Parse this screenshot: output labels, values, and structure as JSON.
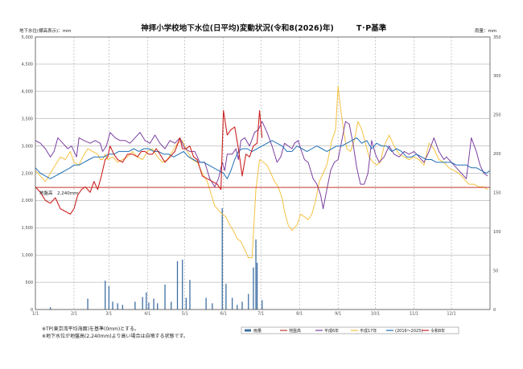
{
  "chart_data": {
    "type": "line",
    "title": "神拝小学校地下水位(日平均)変動状況(令和8(2026)年)",
    "title_suffix": "T･P基準",
    "ylabel": "地下水位(標高表示)：mm",
    "y2label": "雨量：mm",
    "ylim": [
      0,
      5000
    ],
    "y2lim": [
      0,
      350
    ],
    "yticks": [
      "0",
      "500",
      "1,000",
      "1,500",
      "2,000",
      "2,500",
      "3,000",
      "3,500",
      "4,000",
      "4,500",
      "5,000"
    ],
    "y2ticks": [
      "0",
      "50",
      "100",
      "150",
      "200",
      "250",
      "300",
      "350"
    ],
    "xlim": [
      0,
      365
    ],
    "xticks": [
      {
        "x": 0,
        "label": "1/1"
      },
      {
        "x": 31,
        "label": "2/1"
      },
      {
        "x": 59,
        "label": "3/1"
      },
      {
        "x": 90,
        "label": "4/1"
      },
      {
        "x": 120,
        "label": "5/1"
      },
      {
        "x": 151,
        "label": "6/1"
      },
      {
        "x": 181,
        "label": "7/1"
      },
      {
        "x": 212,
        "label": "8/1"
      },
      {
        "x": 243,
        "label": "9/1"
      },
      {
        "x": 273,
        "label": "10/1"
      },
      {
        "x": 304,
        "label": "11/1"
      },
      {
        "x": 334,
        "label": "12/1"
      }
    ],
    "ground_level": {
      "value": 2240,
      "label": "地盤高　2,240mm",
      "color": "#c0392b"
    },
    "notes": [
      "※TP(東京湾平均海面)を基準(0mm)とする。",
      "※地下水位が地盤高(2,240mm)より高い場合は自噴する状態です。"
    ],
    "legend": [
      {
        "key": "rain",
        "label": "雨量"
      },
      {
        "key": "ground",
        "label": "地盤高"
      },
      {
        "key": "h6",
        "label": "平成6年"
      },
      {
        "key": "h17",
        "label": "平成17年"
      },
      {
        "key": "avg",
        "label": "(2016～2025)"
      },
      {
        "key": "r8",
        "label": "令和8年"
      }
    ],
    "colors": {
      "rain": "#3f6fa3",
      "ground": "#c0392b",
      "h6": "#7b3fa0",
      "h17": "#f5c242",
      "avg": "#1f6fb5",
      "r8": "#cc2222"
    },
    "rain": [
      {
        "x": 12,
        "v": 3
      },
      {
        "x": 42,
        "v": 14
      },
      {
        "x": 56,
        "v": 37
      },
      {
        "x": 59,
        "v": 30
      },
      {
        "x": 62,
        "v": 10
      },
      {
        "x": 66,
        "v": 8
      },
      {
        "x": 70,
        "v": 6
      },
      {
        "x": 80,
        "v": 10
      },
      {
        "x": 86,
        "v": 16
      },
      {
        "x": 89,
        "v": 22
      },
      {
        "x": 91,
        "v": 9
      },
      {
        "x": 95,
        "v": 14
      },
      {
        "x": 98,
        "v": 8
      },
      {
        "x": 104,
        "v": 32
      },
      {
        "x": 109,
        "v": 10
      },
      {
        "x": 114,
        "v": 62
      },
      {
        "x": 118,
        "v": 64
      },
      {
        "x": 121,
        "v": 15
      },
      {
        "x": 124,
        "v": 38
      },
      {
        "x": 137,
        "v": 15
      },
      {
        "x": 142,
        "v": 8
      },
      {
        "x": 150,
        "v": 130
      },
      {
        "x": 153,
        "v": 33
      },
      {
        "x": 158,
        "v": 15
      },
      {
        "x": 162,
        "v": 6
      },
      {
        "x": 166,
        "v": 10
      },
      {
        "x": 171,
        "v": 20
      },
      {
        "x": 175,
        "v": 54
      },
      {
        "x": 177,
        "v": 90
      },
      {
        "x": 178,
        "v": 60
      },
      {
        "x": 182,
        "v": 12
      }
    ],
    "h6": [
      [
        0,
        3100
      ],
      [
        4,
        3050
      ],
      [
        8,
        2950
      ],
      [
        12,
        2800
      ],
      [
        15,
        2900
      ],
      [
        18,
        3150
      ],
      [
        22,
        3050
      ],
      [
        26,
        2950
      ],
      [
        29,
        3000
      ],
      [
        33,
        2800
      ],
      [
        35,
        3150
      ],
      [
        39,
        3100
      ],
      [
        44,
        3050
      ],
      [
        48,
        3100
      ],
      [
        52,
        3050
      ],
      [
        54,
        2900
      ],
      [
        57,
        3000
      ],
      [
        60,
        3250
      ],
      [
        64,
        3150
      ],
      [
        68,
        3100
      ],
      [
        72,
        3100
      ],
      [
        76,
        3050
      ],
      [
        80,
        3150
      ],
      [
        84,
        3250
      ],
      [
        88,
        3100
      ],
      [
        92,
        3050
      ],
      [
        96,
        3200
      ],
      [
        100,
        3050
      ],
      [
        104,
        2950
      ],
      [
        108,
        3100
      ],
      [
        112,
        3050
      ],
      [
        116,
        3150
      ],
      [
        120,
        2950
      ],
      [
        124,
        2900
      ],
      [
        128,
        2900
      ],
      [
        132,
        2700
      ],
      [
        136,
        2700
      ],
      [
        140,
        2400
      ],
      [
        144,
        2250
      ],
      [
        147,
        2400
      ],
      [
        150,
        2700
      ],
      [
        152,
        2550
      ],
      [
        154,
        2850
      ],
      [
        158,
        2850
      ],
      [
        161,
        2950
      ],
      [
        163,
        2750
      ],
      [
        165,
        3100
      ],
      [
        168,
        3150
      ],
      [
        172,
        3000
      ],
      [
        176,
        3250
      ],
      [
        179,
        3300
      ],
      [
        182,
        3450
      ],
      [
        186,
        3250
      ],
      [
        190,
        3000
      ],
      [
        194,
        2700
      ],
      [
        197,
        2800
      ],
      [
        200,
        3050
      ],
      [
        203,
        3000
      ],
      [
        206,
        2950
      ],
      [
        208,
        3050
      ],
      [
        211,
        3100
      ],
      [
        213,
        2950
      ],
      [
        216,
        2750
      ],
      [
        219,
        2700
      ],
      [
        223,
        2400
      ],
      [
        226,
        2300
      ],
      [
        229,
        2100
      ],
      [
        231,
        1850
      ],
      [
        234,
        2200
      ],
      [
        237,
        2550
      ],
      [
        240,
        2700
      ],
      [
        243,
        2750
      ],
      [
        246,
        3100
      ],
      [
        249,
        3450
      ],
      [
        252,
        3400
      ],
      [
        255,
        3050
      ],
      [
        258,
        2600
      ],
      [
        261,
        2300
      ],
      [
        264,
        2300
      ],
      [
        267,
        2500
      ],
      [
        270,
        3100
      ],
      [
        273,
        2850
      ],
      [
        276,
        2700
      ],
      [
        280,
        2800
      ],
      [
        284,
        3000
      ],
      [
        288,
        2850
      ],
      [
        292,
        2800
      ],
      [
        296,
        2900
      ],
      [
        300,
        2850
      ],
      [
        304,
        2900
      ],
      [
        308,
        2800
      ],
      [
        312,
        2700
      ],
      [
        316,
        2900
      ],
      [
        320,
        3150
      ],
      [
        324,
        2900
      ],
      [
        328,
        2750
      ],
      [
        330,
        2800
      ],
      [
        334,
        2700
      ],
      [
        338,
        2600
      ],
      [
        342,
        2500
      ],
      [
        346,
        2400
      ],
      [
        350,
        3150
      ],
      [
        354,
        2900
      ],
      [
        357,
        2650
      ],
      [
        360,
        2500
      ],
      [
        363,
        2450
      ]
    ],
    "h17": [
      [
        0,
        2550
      ],
      [
        4,
        2450
      ],
      [
        8,
        2350
      ],
      [
        12,
        2500
      ],
      [
        16,
        2650
      ],
      [
        20,
        2800
      ],
      [
        24,
        2750
      ],
      [
        28,
        2900
      ],
      [
        31,
        2700
      ],
      [
        35,
        2650
      ],
      [
        38,
        2800
      ],
      [
        42,
        2950
      ],
      [
        46,
        2900
      ],
      [
        50,
        2850
      ],
      [
        52,
        2750
      ],
      [
        54,
        2750
      ],
      [
        56,
        2850
      ],
      [
        58,
        2750
      ],
      [
        62,
        2800
      ],
      [
        66,
        2700
      ],
      [
        70,
        2750
      ],
      [
        74,
        2800
      ],
      [
        78,
        2900
      ],
      [
        82,
        2800
      ],
      [
        86,
        2750
      ],
      [
        90,
        2900
      ],
      [
        94,
        2950
      ],
      [
        98,
        2800
      ],
      [
        102,
        2700
      ],
      [
        106,
        2750
      ],
      [
        110,
        2900
      ],
      [
        114,
        3050
      ],
      [
        118,
        3100
      ],
      [
        122,
        2900
      ],
      [
        126,
        2750
      ],
      [
        130,
        2700
      ],
      [
        134,
        2500
      ],
      [
        138,
        2350
      ],
      [
        142,
        2050
      ],
      [
        144,
        1900
      ],
      [
        148,
        1800
      ],
      [
        150,
        1750
      ],
      [
        153,
        1700
      ],
      [
        156,
        1550
      ],
      [
        159,
        1450
      ],
      [
        162,
        1300
      ],
      [
        165,
        1250
      ],
      [
        168,
        1100
      ],
      [
        171,
        950
      ],
      [
        174,
        950
      ],
      [
        177,
        2200
      ],
      [
        180,
        2750
      ],
      [
        183,
        2700
      ],
      [
        186,
        2650
      ],
      [
        189,
        2500
      ],
      [
        192,
        2350
      ],
      [
        195,
        2250
      ],
      [
        198,
        2050
      ],
      [
        200,
        1800
      ],
      [
        203,
        1550
      ],
      [
        206,
        1450
      ],
      [
        210,
        1550
      ],
      [
        213,
        1750
      ],
      [
        216,
        1700
      ],
      [
        219,
        1650
      ],
      [
        222,
        1750
      ],
      [
        225,
        2000
      ],
      [
        228,
        2350
      ],
      [
        231,
        2500
      ],
      [
        234,
        2650
      ],
      [
        238,
        3100
      ],
      [
        241,
        3300
      ],
      [
        243,
        4100
      ],
      [
        245,
        3700
      ],
      [
        248,
        3200
      ],
      [
        250,
        2950
      ],
      [
        253,
        2900
      ],
      [
        256,
        3100
      ],
      [
        259,
        3450
      ],
      [
        262,
        3300
      ],
      [
        265,
        3050
      ],
      [
        268,
        2800
      ],
      [
        271,
        2700
      ],
      [
        274,
        2650
      ],
      [
        277,
        2700
      ],
      [
        280,
        3000
      ],
      [
        284,
        3200
      ],
      [
        288,
        3000
      ],
      [
        292,
        2850
      ],
      [
        296,
        2800
      ],
      [
        300,
        2750
      ],
      [
        304,
        2800
      ],
      [
        308,
        2750
      ],
      [
        312,
        2650
      ],
      [
        316,
        3050
      ],
      [
        320,
        2950
      ],
      [
        324,
        2750
      ],
      [
        328,
        2700
      ],
      [
        332,
        2600
      ],
      [
        336,
        2550
      ],
      [
        340,
        2500
      ],
      [
        344,
        2400
      ],
      [
        348,
        2300
      ],
      [
        352,
        2300
      ],
      [
        356,
        2250
      ],
      [
        360,
        2250
      ],
      [
        363,
        2200
      ]
    ],
    "avg": [
      [
        0,
        2600
      ],
      [
        4,
        2500
      ],
      [
        8,
        2450
      ],
      [
        12,
        2400
      ],
      [
        16,
        2450
      ],
      [
        20,
        2500
      ],
      [
        24,
        2550
      ],
      [
        28,
        2600
      ],
      [
        31,
        2650
      ],
      [
        35,
        2650
      ],
      [
        39,
        2700
      ],
      [
        43,
        2750
      ],
      [
        47,
        2800
      ],
      [
        51,
        2800
      ],
      [
        55,
        2800
      ],
      [
        59,
        2850
      ],
      [
        63,
        2850
      ],
      [
        67,
        2900
      ],
      [
        71,
        2900
      ],
      [
        75,
        2900
      ],
      [
        79,
        2950
      ],
      [
        83,
        2900
      ],
      [
        87,
        2950
      ],
      [
        91,
        2950
      ],
      [
        95,
        2900
      ],
      [
        99,
        2900
      ],
      [
        103,
        2850
      ],
      [
        107,
        2850
      ],
      [
        111,
        2800
      ],
      [
        115,
        2850
      ],
      [
        119,
        2900
      ],
      [
        123,
        2800
      ],
      [
        127,
        2750
      ],
      [
        131,
        2700
      ],
      [
        135,
        2700
      ],
      [
        139,
        2650
      ],
      [
        143,
        2600
      ],
      [
        147,
        2550
      ],
      [
        151,
        2500
      ],
      [
        154,
        2400
      ],
      [
        157,
        2550
      ],
      [
        160,
        2750
      ],
      [
        163,
        2900
      ],
      [
        166,
        2950
      ],
      [
        170,
        2950
      ],
      [
        174,
        2900
      ],
      [
        178,
        2950
      ],
      [
        182,
        3000
      ],
      [
        186,
        3050
      ],
      [
        190,
        3100
      ],
      [
        194,
        3050
      ],
      [
        198,
        3000
      ],
      [
        202,
        2900
      ],
      [
        206,
        2900
      ],
      [
        210,
        3000
      ],
      [
        214,
        2950
      ],
      [
        218,
        2900
      ],
      [
        222,
        2950
      ],
      [
        226,
        3000
      ],
      [
        230,
        2950
      ],
      [
        234,
        2900
      ],
      [
        238,
        2950
      ],
      [
        242,
        3000
      ],
      [
        246,
        3000
      ],
      [
        250,
        3050
      ],
      [
        254,
        3100
      ],
      [
        258,
        3150
      ],
      [
        262,
        3050
      ],
      [
        266,
        3100
      ],
      [
        270,
        2950
      ],
      [
        274,
        3050
      ],
      [
        278,
        3000
      ],
      [
        282,
        3000
      ],
      [
        286,
        2900
      ],
      [
        290,
        2950
      ],
      [
        294,
        2900
      ],
      [
        298,
        2800
      ],
      [
        302,
        2800
      ],
      [
        306,
        2850
      ],
      [
        310,
        2800
      ],
      [
        314,
        2750
      ],
      [
        318,
        2750
      ],
      [
        322,
        2700
      ],
      [
        326,
        2700
      ],
      [
        330,
        2700
      ],
      [
        334,
        2700
      ],
      [
        338,
        2650
      ],
      [
        342,
        2650
      ],
      [
        346,
        2650
      ],
      [
        350,
        2600
      ],
      [
        354,
        2600
      ],
      [
        358,
        2550
      ],
      [
        362,
        2500
      ],
      [
        365,
        2550
      ]
    ],
    "r8": [
      [
        0,
        2250
      ],
      [
        4,
        2150
      ],
      [
        8,
        2000
      ],
      [
        12,
        1950
      ],
      [
        16,
        2050
      ],
      [
        20,
        1850
      ],
      [
        24,
        1800
      ],
      [
        28,
        1750
      ],
      [
        31,
        1850
      ],
      [
        34,
        2100
      ],
      [
        37,
        2200
      ],
      [
        40,
        2250
      ],
      [
        44,
        2150
      ],
      [
        47,
        2350
      ],
      [
        50,
        2200
      ],
      [
        53,
        2450
      ],
      [
        56,
        2750
      ],
      [
        58,
        2800
      ],
      [
        60,
        3000
      ],
      [
        63,
        2850
      ],
      [
        66,
        2750
      ],
      [
        70,
        2700
      ],
      [
        74,
        2850
      ],
      [
        78,
        2850
      ],
      [
        82,
        2800
      ],
      [
        85,
        2900
      ],
      [
        88,
        2900
      ],
      [
        91,
        2850
      ],
      [
        94,
        2850
      ],
      [
        97,
        2950
      ],
      [
        100,
        2850
      ],
      [
        104,
        2700
      ],
      [
        108,
        2800
      ],
      [
        112,
        2900
      ],
      [
        116,
        3150
      ],
      [
        118,
        2950
      ],
      [
        121,
        2950
      ],
      [
        124,
        3000
      ],
      [
        127,
        2800
      ],
      [
        130,
        2750
      ],
      [
        134,
        2450
      ],
      [
        138,
        2400
      ],
      [
        142,
        2350
      ],
      [
        146,
        2300
      ],
      [
        149,
        2200
      ],
      [
        151,
        3650
      ],
      [
        154,
        3200
      ],
      [
        157,
        3300
      ],
      [
        160,
        3350
      ],
      [
        163,
        2950
      ],
      [
        166,
        2450
      ],
      [
        169,
        2850
      ],
      [
        172,
        2800
      ],
      [
        175,
        3000
      ],
      [
        178,
        3050
      ],
      [
        180,
        3650
      ],
      [
        182,
        3150
      ]
    ]
  }
}
